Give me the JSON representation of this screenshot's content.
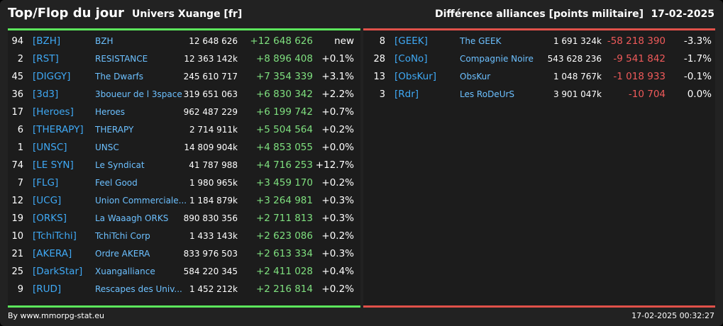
{
  "header": {
    "title": "Top/Flop du jour",
    "universe": "Univers Xuange [fr]",
    "ranking": "Différence alliances [points militaire]",
    "date": "17-02-2025"
  },
  "colors": {
    "top_accent": "#5ce65c",
    "flop_accent": "#e0514a",
    "tag": "#3fa9f5",
    "name": "#6cc0ff",
    "gain": "#7fe07f",
    "loss": "#ef5a5a"
  },
  "top": [
    {
      "rank": "94",
      "tag": "[BZH]",
      "name": "BZH",
      "points": "12 648 626",
      "diff": "+12 648 626",
      "pct": "new"
    },
    {
      "rank": "2",
      "tag": "[RST]",
      "name": "RESISTANCE",
      "points": "12 363 142k",
      "diff": "+8 896 408",
      "pct": "+0.1%"
    },
    {
      "rank": "45",
      "tag": "[DIGGY]",
      "name": "The Dwarfs",
      "points": "245 610 717",
      "diff": "+7 354 339",
      "pct": "+3.1%"
    },
    {
      "rank": "36",
      "tag": "[3d3]",
      "name": "3boueur de l 3space",
      "points": "319 651 063",
      "diff": "+6 830 342",
      "pct": "+2.2%"
    },
    {
      "rank": "17",
      "tag": "[Heroes]",
      "name": "Heroes",
      "points": "962 487 229",
      "diff": "+6 199 742",
      "pct": "+0.7%"
    },
    {
      "rank": "6",
      "tag": "[THERAPY]",
      "name": "THERAPY",
      "points": "2 714 911k",
      "diff": "+5 504 564",
      "pct": "+0.2%"
    },
    {
      "rank": "1",
      "tag": "[UNSC]",
      "name": "UNSC",
      "points": "14 809 904k",
      "diff": "+4 853 055",
      "pct": "+0.0%"
    },
    {
      "rank": "74",
      "tag": "[LE SYN]",
      "name": "Le Syndicat",
      "points": "41 787 988",
      "diff": "+4 716 253",
      "pct": "+12.7%"
    },
    {
      "rank": "7",
      "tag": "[FLG]",
      "name": "Feel Good",
      "points": "1 980 965k",
      "diff": "+3 459 170",
      "pct": "+0.2%"
    },
    {
      "rank": "12",
      "tag": "[UCG]",
      "name": "Union Commerciale...",
      "points": "1 184 879k",
      "diff": "+3 264 981",
      "pct": "+0.3%"
    },
    {
      "rank": "19",
      "tag": "[ORKS]",
      "name": "La Waaagh ORKS",
      "points": "890 830 356",
      "diff": "+2 711 813",
      "pct": "+0.3%"
    },
    {
      "rank": "10",
      "tag": "[TchiTchi]",
      "name": "TchiTchi Corp",
      "points": "1 433 143k",
      "diff": "+2 623 086",
      "pct": "+0.2%"
    },
    {
      "rank": "21",
      "tag": "[AKERA]",
      "name": "Ordre AKERA",
      "points": "833 976 503",
      "diff": "+2 613 334",
      "pct": "+0.3%"
    },
    {
      "rank": "25",
      "tag": "[DarkStar]",
      "name": "Xuangalliance",
      "points": "584 220 345",
      "diff": "+2 411 028",
      "pct": "+0.4%"
    },
    {
      "rank": "9",
      "tag": "[RUD]",
      "name": "Rescapes des Univ...",
      "points": "1 452 212k",
      "diff": "+2 216 814",
      "pct": "+0.2%"
    }
  ],
  "flop": [
    {
      "rank": "8",
      "tag": "[GEEK]",
      "name": "The GEEK",
      "points": "1 691 324k",
      "diff": "-58 218 390",
      "pct": "-3.3%"
    },
    {
      "rank": "28",
      "tag": "[CoNo]",
      "name": "Compagnie Noire",
      "points": "543 628 236",
      "diff": "-9 541 842",
      "pct": "-1.7%"
    },
    {
      "rank": "13",
      "tag": "[ObsKur]",
      "name": "ObsKur",
      "points": "1 048 767k",
      "diff": "-1 018 933",
      "pct": "-0.1%"
    },
    {
      "rank": "3",
      "tag": "[Rdr]",
      "name": "Les RoDeUrS",
      "points": "3 901 047k",
      "diff": "-10 704",
      "pct": "0.0%"
    }
  ],
  "footer": {
    "credit": "By www.mmorpg-stat.eu",
    "timestamp": "17-02-2025 00:32:27"
  }
}
